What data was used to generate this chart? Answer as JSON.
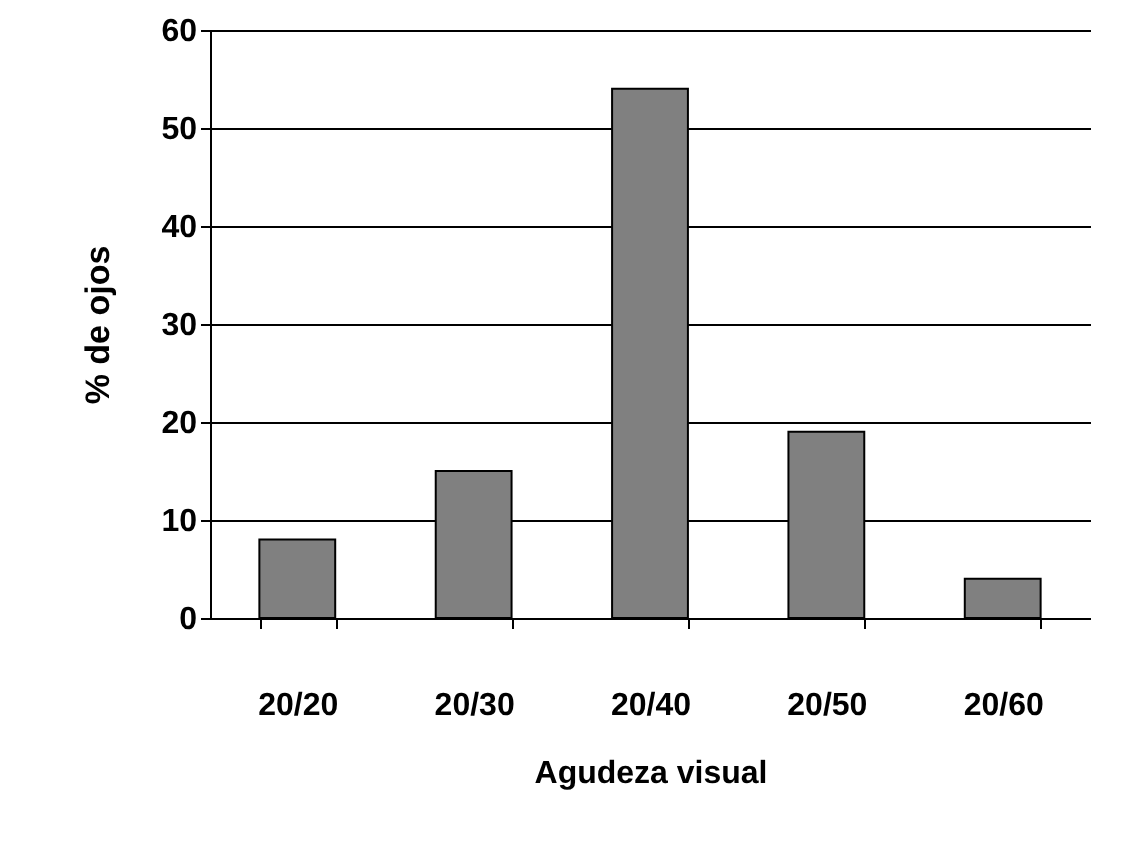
{
  "chart_data": {
    "type": "bar",
    "xlabel": "Agudeza visual",
    "ylabel": "% de ojos",
    "categories": [
      "20/20",
      "20/30",
      "20/40",
      "20/50",
      "20/60"
    ],
    "values": [
      8,
      15,
      54,
      19,
      4
    ],
    "color": "#808080",
    "ylim": [
      0,
      60
    ],
    "yticks": [
      0,
      10,
      20,
      30,
      40,
      50,
      60
    ],
    "grid": "y"
  }
}
